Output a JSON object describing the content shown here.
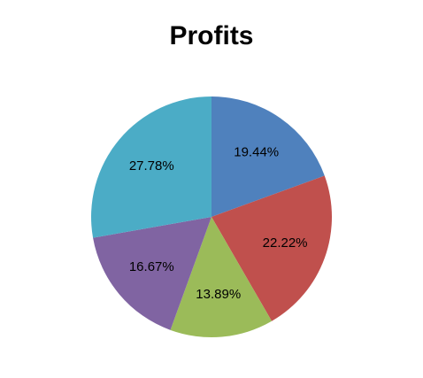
{
  "chart_data": {
    "type": "pie",
    "title": "Profits",
    "values": [
      19.44,
      22.22,
      13.89,
      16.67,
      27.78
    ],
    "value_labels": [
      "19.44%",
      "22.22%",
      "13.89%",
      "16.67%",
      "27.78%"
    ],
    "colors": [
      "#4f81bd",
      "#c0504d",
      "#9bbb59",
      "#8064a2",
      "#4bacc6"
    ]
  }
}
